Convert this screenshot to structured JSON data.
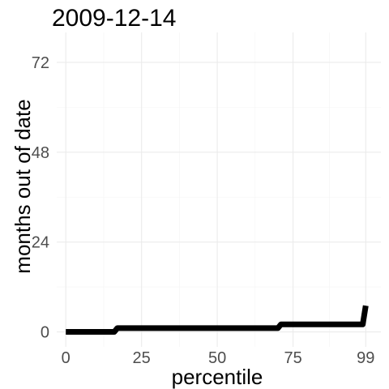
{
  "chart_data": {
    "type": "line",
    "title": "2009-12-14",
    "xlabel": "percentile",
    "ylabel": "months out of date",
    "xlim": [
      -3,
      104
    ],
    "ylim": [
      -4,
      80
    ],
    "x_ticks": [
      0,
      25,
      50,
      75,
      99
    ],
    "x_tick_labels": [
      "0",
      "25",
      "50",
      "75",
      "99"
    ],
    "y_ticks": [
      0,
      24,
      48,
      72
    ],
    "y_tick_labels": [
      "0",
      "24",
      "48",
      "72"
    ],
    "grid": true,
    "legend": "none",
    "series": [
      {
        "color": "#000000",
        "x": [
          0,
          16,
          17,
          70,
          71,
          98,
          99
        ],
        "y": [
          0,
          0,
          1,
          1,
          2,
          2,
          7
        ]
      }
    ]
  }
}
